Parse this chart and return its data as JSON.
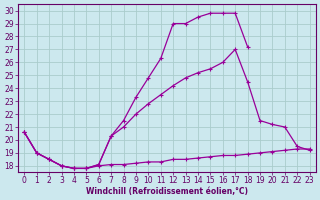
{
  "xlabel": "Windchill (Refroidissement éolien,°C)",
  "bg_color": "#cce8ee",
  "grid_color": "#aacccc",
  "line_color": "#990099",
  "xlim": [
    -0.5,
    23.5
  ],
  "ylim": [
    17.5,
    30.5
  ],
  "xticks": [
    0,
    1,
    2,
    3,
    4,
    5,
    6,
    7,
    8,
    9,
    10,
    11,
    12,
    13,
    14,
    15,
    16,
    17,
    18,
    19,
    20,
    21,
    22,
    23
  ],
  "yticks": [
    18,
    19,
    20,
    21,
    22,
    23,
    24,
    25,
    26,
    27,
    28,
    29,
    30
  ],
  "line_top_x": [
    0,
    1,
    2,
    3,
    4,
    5,
    6,
    7,
    8,
    9,
    10,
    11,
    12,
    13,
    14,
    15,
    16,
    17,
    18
  ],
  "line_top_y": [
    20.6,
    19.0,
    18.5,
    18.0,
    17.8,
    17.8,
    18.1,
    20.3,
    21.5,
    23.3,
    24.8,
    26.3,
    29.0,
    29.0,
    29.5,
    29.8,
    29.8,
    29.8,
    27.2
  ],
  "line_mid_x": [
    0,
    1,
    2,
    3,
    4,
    5,
    6,
    7,
    8,
    9,
    10,
    11,
    12,
    13,
    14,
    15,
    16,
    17,
    18,
    19,
    20,
    21,
    22,
    23
  ],
  "line_mid_y": [
    20.6,
    19.0,
    18.5,
    18.0,
    17.8,
    17.8,
    18.1,
    20.3,
    21.0,
    22.0,
    22.8,
    23.5,
    24.2,
    24.8,
    25.2,
    25.5,
    26.0,
    27.0,
    24.5,
    21.5,
    21.2,
    21.0,
    19.5,
    19.2
  ],
  "line_bot_x": [
    0,
    1,
    2,
    3,
    4,
    5,
    6,
    7,
    8,
    9,
    10,
    11,
    12,
    13,
    14,
    15,
    16,
    17,
    18,
    19,
    20,
    21,
    22,
    23
  ],
  "line_bot_y": [
    20.6,
    19.0,
    18.5,
    18.0,
    17.8,
    17.8,
    18.0,
    18.1,
    18.1,
    18.2,
    18.3,
    18.3,
    18.5,
    18.5,
    18.6,
    18.7,
    18.8,
    18.8,
    18.9,
    19.0,
    19.1,
    19.2,
    19.3,
    19.3
  ]
}
